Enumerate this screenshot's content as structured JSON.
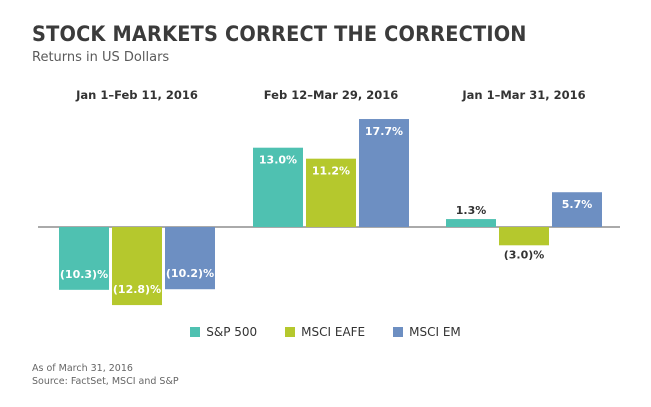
{
  "chart_data": {
    "type": "bar",
    "title": "STOCK MARKETS CORRECT THE CORRECTION",
    "subtitle": "Returns in US Dollars",
    "categories": [
      "Jan 1–Feb 11, 2016",
      "Feb 12–Mar 29, 2016",
      "Jan 1–Mar 31, 2016"
    ],
    "series": [
      {
        "name": "S&P 500",
        "color": "#4fc1b1",
        "values": [
          -10.3,
          13.0,
          1.3
        ],
        "labels": [
          "(10.3)%",
          "13.0%",
          "1.3%"
        ]
      },
      {
        "name": "MSCI EAFE",
        "color": "#b5c82d",
        "values": [
          -12.8,
          11.2,
          -3.0
        ],
        "labels": [
          "(12.8)%",
          "11.2%",
          "(3.0)%"
        ]
      },
      {
        "name": "MSCI EM",
        "color": "#6d8fc2",
        "values": [
          -10.2,
          17.7,
          5.7
        ],
        "labels": [
          "(10.2)%",
          "17.7%",
          "5.7%"
        ]
      }
    ],
    "ylim": [
      -13.5,
      18.5
    ],
    "grid": false,
    "legend": "bottom-center"
  },
  "footer": {
    "note": "As of March 31, 2016",
    "source": "Source: FactSet, MSCI and S&P"
  }
}
